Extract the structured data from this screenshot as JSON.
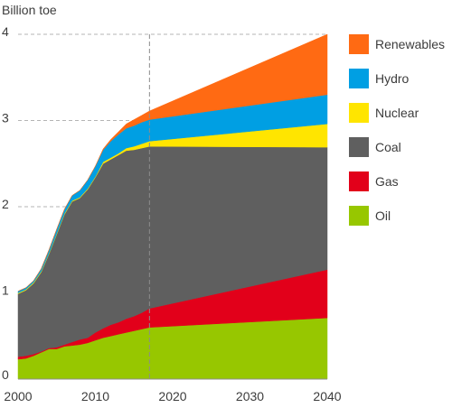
{
  "chart_data": {
    "type": "area",
    "stacked": true,
    "ylabel": "Billion toe",
    "xlabel": "",
    "xlim": [
      2000,
      2040
    ],
    "ylim": [
      0,
      4
    ],
    "x_ticks": [
      2000,
      2010,
      2020,
      2030,
      2040
    ],
    "x_tick_labels": [
      "2000",
      "2010",
      "2020",
      "2030",
      "2040"
    ],
    "y_ticks": [
      0,
      1,
      2,
      3,
      4
    ],
    "y_tick_labels": [
      "0",
      "1",
      "2",
      "3",
      "4"
    ],
    "grid": "horizontal-dashed",
    "reference_line_x": 2017,
    "legend_position": "right",
    "x": [
      2000,
      2001,
      2002,
      2003,
      2004,
      2005,
      2006,
      2007,
      2008,
      2009,
      2010,
      2011,
      2012,
      2013,
      2014,
      2015,
      2016,
      2017,
      2040
    ],
    "series": [
      {
        "name": "Oil",
        "color": "#97c700",
        "values": [
          0.23,
          0.24,
          0.27,
          0.31,
          0.35,
          0.35,
          0.38,
          0.39,
          0.4,
          0.42,
          0.45,
          0.48,
          0.5,
          0.52,
          0.54,
          0.56,
          0.58,
          0.6,
          0.71
        ]
      },
      {
        "name": "Gas",
        "color": "#e2001a",
        "values": [
          0.03,
          0.03,
          0.02,
          0.01,
          0.01,
          0.02,
          0.02,
          0.04,
          0.06,
          0.06,
          0.09,
          0.11,
          0.13,
          0.14,
          0.16,
          0.17,
          0.19,
          0.22,
          0.56
        ]
      },
      {
        "name": "Coal",
        "color": "#5f5f5f",
        "values": [
          0.73,
          0.76,
          0.82,
          0.92,
          1.09,
          1.31,
          1.51,
          1.63,
          1.64,
          1.72,
          1.8,
          1.91,
          1.92,
          1.94,
          1.95,
          1.93,
          1.91,
          1.88,
          1.42
        ]
      },
      {
        "name": "Nuclear",
        "color": "#ffe500",
        "values": [
          0.01,
          0.01,
          0.01,
          0.01,
          0.01,
          0.01,
          0.01,
          0.01,
          0.01,
          0.01,
          0.01,
          0.02,
          0.02,
          0.02,
          0.03,
          0.04,
          0.05,
          0.06,
          0.27
        ]
      },
      {
        "name": "Hydro",
        "color": "#009fe3",
        "values": [
          0.02,
          0.02,
          0.02,
          0.03,
          0.04,
          0.05,
          0.05,
          0.06,
          0.08,
          0.1,
          0.12,
          0.14,
          0.19,
          0.22,
          0.23,
          0.24,
          0.25,
          0.25,
          0.34
        ]
      },
      {
        "name": "Renewables",
        "color": "#ff6a13",
        "values": [
          0.0,
          0.0,
          0.0,
          0.0,
          0.0,
          0.0,
          0.0,
          0.0,
          0.0,
          0.0,
          0.0,
          0.01,
          0.02,
          0.03,
          0.05,
          0.07,
          0.08,
          0.1,
          0.7
        ]
      }
    ]
  }
}
